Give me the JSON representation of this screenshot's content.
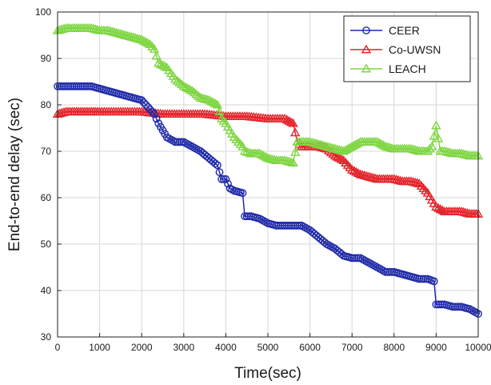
{
  "chart_data": {
    "type": "line",
    "title": "",
    "xlabel": "Time(sec)",
    "ylabel": "End-to-end delay (sec)",
    "xlim": [
      0,
      10000
    ],
    "ylim": [
      30,
      100
    ],
    "xticks": [
      0,
      1000,
      2000,
      3000,
      4000,
      5000,
      6000,
      7000,
      8000,
      9000,
      10000
    ],
    "yticks": [
      30,
      40,
      50,
      60,
      70,
      80,
      90,
      100
    ],
    "grid": true,
    "legend_position": "top-right",
    "series": [
      {
        "name": "CEER",
        "color": "#1f2aa8",
        "marker": "circle",
        "x": [
          0,
          200,
          400,
          600,
          800,
          1000,
          1200,
          1400,
          1600,
          1800,
          2000,
          2100,
          2200,
          2300,
          2400,
          2500,
          2600,
          2800,
          3000,
          3200,
          3400,
          3600,
          3800,
          3900,
          4000,
          4100,
          4200,
          4400,
          4450,
          4600,
          4800,
          5000,
          5200,
          5400,
          5600,
          5800,
          6000,
          6200,
          6400,
          6600,
          6800,
          7000,
          7200,
          7400,
          7600,
          7800,
          8000,
          8200,
          8400,
          8600,
          8800,
          8950,
          9000,
          9200,
          9400,
          9600,
          9800,
          10000
        ],
        "y": [
          84,
          84,
          84,
          84,
          84,
          83.5,
          83,
          82.5,
          82,
          81.5,
          81,
          80,
          79,
          78,
          76,
          74.5,
          73,
          72,
          72,
          71,
          70,
          68.5,
          67,
          64,
          64,
          62,
          61.5,
          61,
          56,
          56,
          55.5,
          54.5,
          54,
          54,
          54,
          54,
          53,
          51.5,
          50,
          49,
          47.5,
          47,
          47,
          46,
          45,
          44,
          44,
          43.5,
          43,
          42.5,
          42.5,
          42,
          37,
          37,
          36.5,
          36.5,
          36,
          35
        ]
      },
      {
        "name": "Co-UWSN",
        "color": "#e3242b",
        "marker": "triangle",
        "x": [
          0,
          200,
          400,
          600,
          800,
          1000,
          1500,
          2000,
          2500,
          3000,
          3500,
          4000,
          4500,
          5000,
          5400,
          5500,
          5600,
          5700,
          5800,
          6000,
          6200,
          6400,
          6600,
          6800,
          7000,
          7200,
          7400,
          7600,
          7800,
          8000,
          8200,
          8400,
          8600,
          8800,
          9000,
          9200,
          9400,
          9600,
          9800,
          10000
        ],
        "y": [
          78,
          78.5,
          78.5,
          78.5,
          78.5,
          78.5,
          78.5,
          78.5,
          78,
          78,
          78,
          77.5,
          77.5,
          77,
          77,
          76.5,
          76,
          72,
          71,
          71,
          71,
          70.5,
          69,
          68,
          66,
          65,
          64.5,
          64,
          64,
          64,
          63.5,
          63.5,
          63,
          61,
          58,
          57,
          57,
          57,
          56.5,
          56.5
        ]
      },
      {
        "name": "LEACH",
        "color": "#7ed642",
        "marker": "triangle",
        "x": [
          0,
          200,
          400,
          600,
          800,
          1000,
          1200,
          1400,
          1600,
          1800,
          2000,
          2200,
          2300,
          2400,
          2600,
          2800,
          3000,
          3200,
          3400,
          3600,
          3800,
          3900,
          4000,
          4200,
          4300,
          4400,
          4450,
          4600,
          4800,
          5000,
          5200,
          5400,
          5600,
          5700,
          5800,
          6000,
          6200,
          6400,
          6600,
          6800,
          7000,
          7200,
          7400,
          7600,
          7800,
          8000,
          8200,
          8400,
          8600,
          8800,
          8900,
          9000,
          9100,
          9200,
          9400,
          9600,
          9800,
          10000
        ],
        "y": [
          96,
          96.5,
          96.5,
          96.5,
          96.5,
          96,
          96,
          95.5,
          95,
          94.5,
          94,
          93,
          92,
          89,
          88,
          85.5,
          84,
          83,
          81.5,
          81,
          80,
          77,
          76,
          73,
          72,
          71,
          70,
          69.5,
          69.5,
          68.5,
          68,
          68,
          67.5,
          72,
          72,
          72,
          71.5,
          71,
          70.5,
          70,
          71,
          72,
          72,
          72,
          71,
          70.5,
          70.5,
          70.5,
          70,
          70,
          71,
          75.5,
          70,
          70,
          69.5,
          69.5,
          69,
          69
        ]
      }
    ]
  }
}
